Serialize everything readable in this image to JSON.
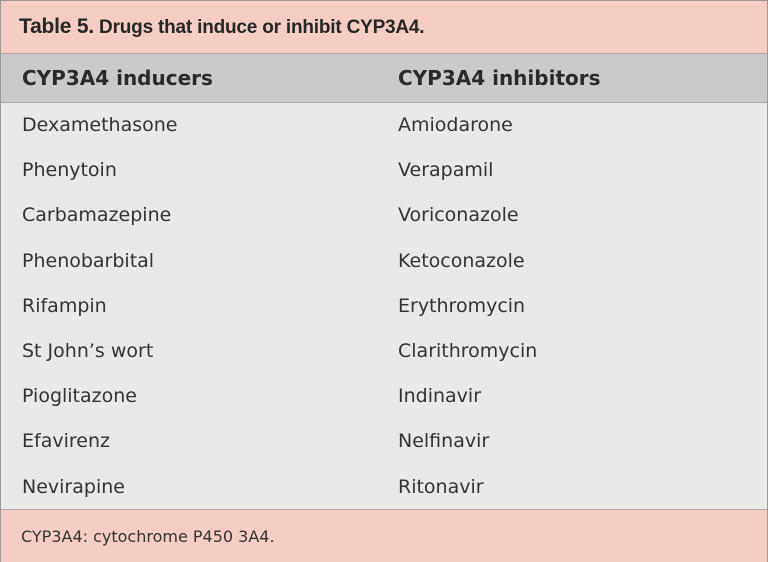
{
  "title": {
    "label": "Table 5.",
    "text": "Drugs that induce or inhibit CYP3A4."
  },
  "table": {
    "columns": [
      "CYP3A4 inducers",
      "CYP3A4 inhibitors"
    ],
    "rows": [
      [
        "Dexamethasone",
        "Amiodarone"
      ],
      [
        "Phenytoin",
        "Verapamil"
      ],
      [
        "Carbamazepine",
        "Voriconazole"
      ],
      [
        "Phenobarbital",
        "Ketoconazole"
      ],
      [
        "Rifampin",
        "Erythromycin"
      ],
      [
        "St John’s wort",
        "Clarithromycin"
      ],
      [
        "Pioglitazone",
        "Indinavir"
      ],
      [
        "Efavirenz",
        "Nelfinavir"
      ],
      [
        "Nevirapine",
        "Ritonavir"
      ]
    ]
  },
  "footnote": "CYP3A4: cytochrome P450 3A4."
}
